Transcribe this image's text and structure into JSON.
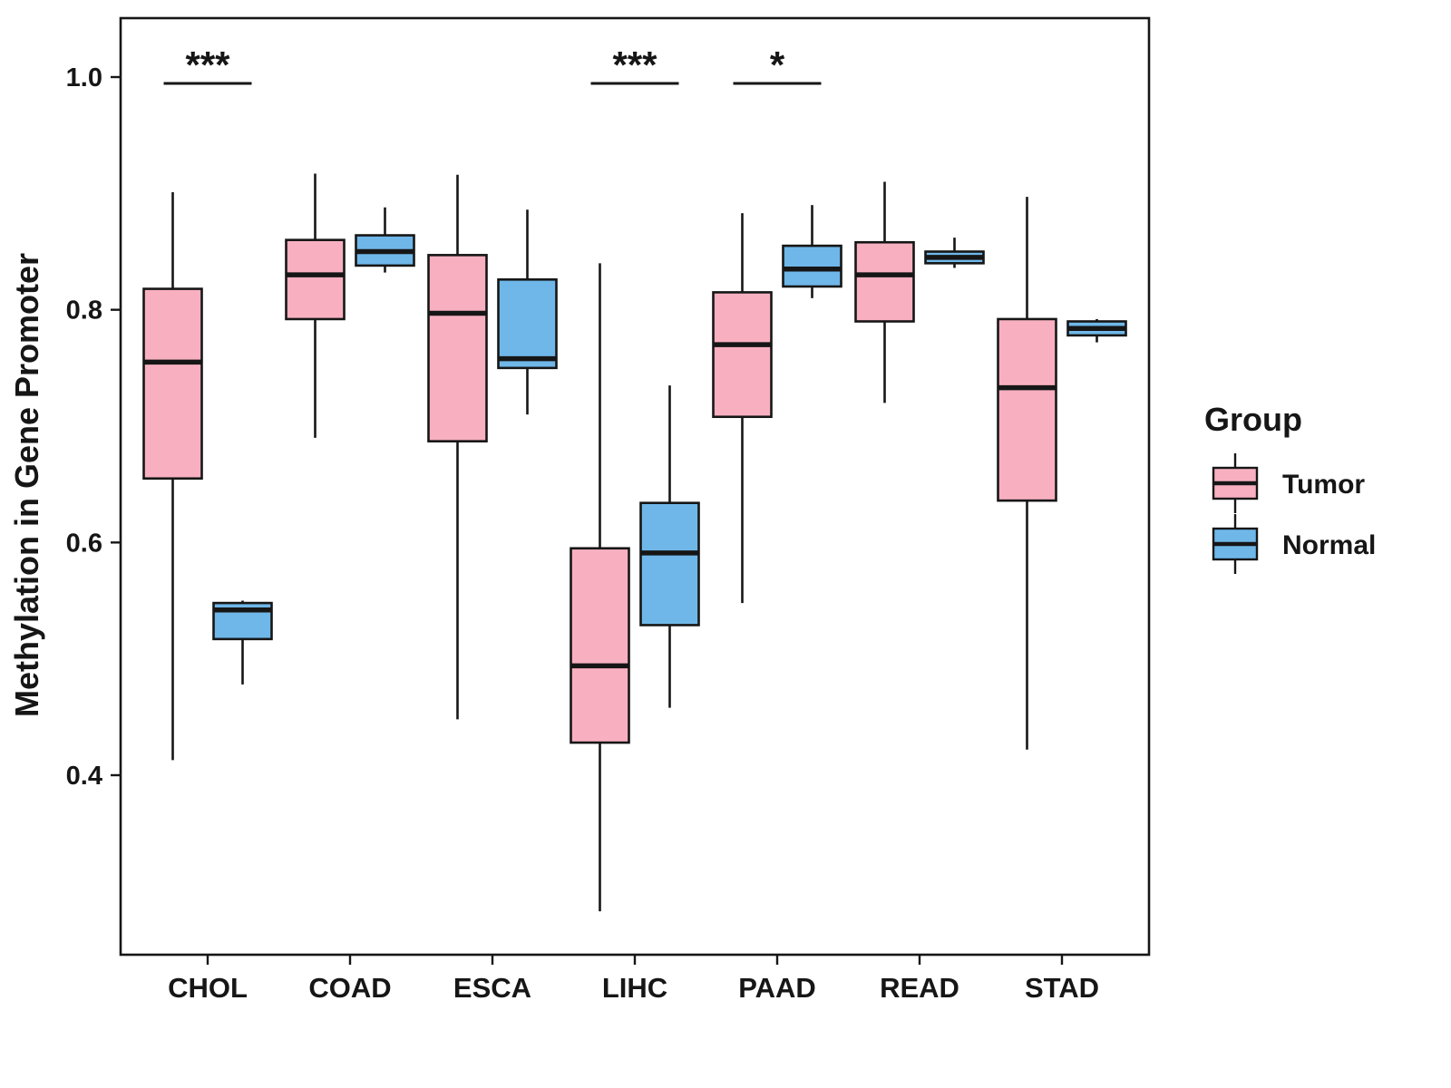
{
  "chart_data": {
    "type": "grouped_boxplot",
    "title": "",
    "xlabel": "",
    "ylabel": "Methylation in Gene Promoter",
    "ylim": [
      0.25,
      1.05
    ],
    "yticks": [
      1.0,
      0.8,
      0.6,
      0.4
    ],
    "grid": "off",
    "categories": [
      "CHOL",
      "COAD",
      "ESCA",
      "LIHC",
      "PAAD",
      "READ",
      "STAD"
    ],
    "legend": {
      "title": "Group",
      "position": "right",
      "entries": [
        "Tumor",
        "Normal"
      ]
    },
    "series": [
      {
        "name": "Tumor",
        "color": "#F8B0C0",
        "boxes": [
          {
            "category": "CHOL",
            "min": 0.413,
            "q1": 0.655,
            "med": 0.755,
            "q3": 0.818,
            "max": 0.901
          },
          {
            "category": "COAD",
            "min": 0.69,
            "q1": 0.792,
            "med": 0.83,
            "q3": 0.86,
            "max": 0.917
          },
          {
            "category": "ESCA",
            "min": 0.448,
            "q1": 0.687,
            "med": 0.797,
            "q3": 0.847,
            "max": 0.916
          },
          {
            "category": "LIHC",
            "min": 0.283,
            "q1": 0.428,
            "med": 0.494,
            "q3": 0.595,
            "max": 0.84
          },
          {
            "category": "PAAD",
            "min": 0.548,
            "q1": 0.708,
            "med": 0.77,
            "q3": 0.815,
            "max": 0.883
          },
          {
            "category": "READ",
            "min": 0.72,
            "q1": 0.79,
            "med": 0.83,
            "q3": 0.858,
            "max": 0.91
          },
          {
            "category": "STAD",
            "min": 0.422,
            "q1": 0.636,
            "med": 0.733,
            "q3": 0.792,
            "max": 0.897
          }
        ]
      },
      {
        "name": "Normal",
        "color": "#6FB7E8",
        "boxes": [
          {
            "category": "CHOL",
            "min": 0.478,
            "q1": 0.517,
            "med": 0.542,
            "q3": 0.548,
            "max": 0.55
          },
          {
            "category": "COAD",
            "min": 0.832,
            "q1": 0.838,
            "med": 0.85,
            "q3": 0.864,
            "max": 0.888
          },
          {
            "category": "ESCA",
            "min": 0.71,
            "q1": 0.75,
            "med": 0.758,
            "q3": 0.826,
            "max": 0.886
          },
          {
            "category": "LIHC",
            "min": 0.458,
            "q1": 0.529,
            "med": 0.591,
            "q3": 0.634,
            "max": 0.735
          },
          {
            "category": "PAAD",
            "min": 0.81,
            "q1": 0.82,
            "med": 0.835,
            "q3": 0.855,
            "max": 0.89
          },
          {
            "category": "READ",
            "min": 0.836,
            "q1": 0.84,
            "med": 0.845,
            "q3": 0.85,
            "max": 0.862
          },
          {
            "category": "STAD",
            "min": 0.772,
            "q1": 0.778,
            "med": 0.784,
            "q3": 0.79,
            "max": 0.792
          }
        ]
      }
    ],
    "significance": [
      {
        "category": "CHOL",
        "label": "***"
      },
      {
        "category": "LIHC",
        "label": "***"
      },
      {
        "category": "PAAD",
        "label": "*"
      }
    ]
  }
}
